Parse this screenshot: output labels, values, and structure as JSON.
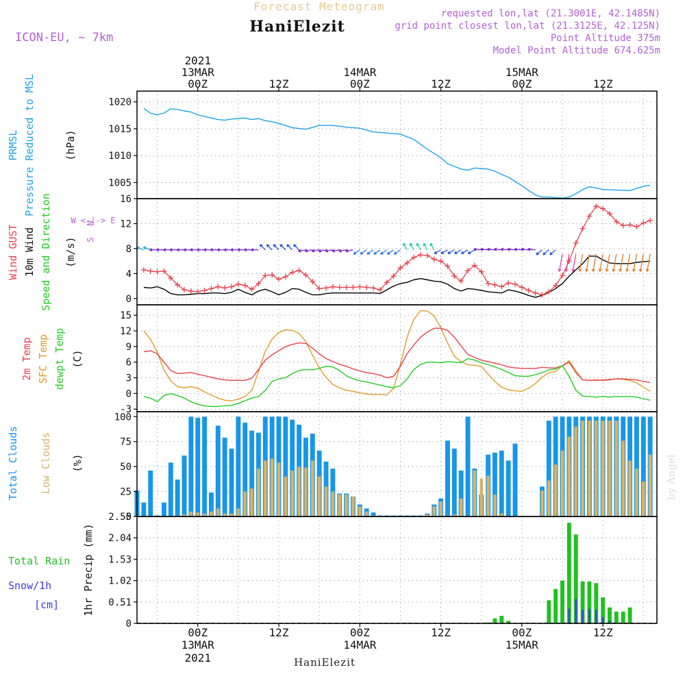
{
  "header": {
    "title": "Forecast Meteogram",
    "location": "HaniElezit",
    "model": "ICON-EU, ~ 7km",
    "requested": "requested lon,lat (21.3001E, 42.1485N)",
    "closest": "grid point closest lon,lat (21.3125E, 42.125N)",
    "altitude": "Point Altitude 375m",
    "model_altitude": "Model Point Altitude 674.625m",
    "watermark": "by Angel",
    "footer": "HaniElezit"
  },
  "time_axis": {
    "top_labels": [
      {
        "h": 0,
        "lines": [
          "2021",
          "13MAR",
          "00Z"
        ]
      },
      {
        "h": 12,
        "lines": [
          "",
          "",
          "12Z"
        ]
      },
      {
        "h": 24,
        "lines": [
          "",
          "14MAR",
          "00Z"
        ]
      },
      {
        "h": 36,
        "lines": [
          "",
          "",
          "12Z"
        ]
      },
      {
        "h": 48,
        "lines": [
          "",
          "15MAR",
          "00Z"
        ]
      },
      {
        "h": 60,
        "lines": [
          "",
          "",
          "12Z"
        ]
      }
    ],
    "bottom_labels": [
      {
        "h": 0,
        "lines": [
          "00Z",
          "13MAR",
          "2021"
        ]
      },
      {
        "h": 12,
        "lines": [
          "12Z",
          "",
          ""
        ]
      },
      {
        "h": 24,
        "lines": [
          "00Z",
          "14MAR",
          ""
        ]
      },
      {
        "h": 36,
        "lines": [
          "12Z",
          "",
          ""
        ]
      },
      {
        "h": 48,
        "lines": [
          "00Z",
          "15MAR",
          ""
        ]
      },
      {
        "h": 60,
        "lines": [
          "12Z",
          "",
          ""
        ]
      }
    ]
  },
  "panels": {
    "pressure": {
      "labels": [
        "PRMSL",
        "Pressure Reduced to MSL"
      ],
      "unit": "(hPa)",
      "yticks": [
        1005,
        1010,
        1015,
        1020
      ],
      "ylim": [
        1002,
        1022
      ]
    },
    "wind": {
      "labels": [
        "Wind GUST",
        "10m Wind",
        "Speed and Direction"
      ],
      "unit": "(m/s)",
      "compass": [
        "N",
        "W <-|-> E",
        "S"
      ],
      "yticks": [
        0,
        4,
        8,
        12,
        16
      ],
      "ylim": [
        -1,
        16
      ]
    },
    "temperature": {
      "labels": [
        "2m Temp",
        "SFC Temp",
        "dewpt Temp"
      ],
      "unit": "(C)",
      "yticks": [
        -3,
        0,
        3,
        6,
        9,
        12,
        15
      ],
      "ylim": [
        -3.5,
        17
      ]
    },
    "clouds": {
      "labels": [
        "Total Clouds",
        "Low Clouds"
      ],
      "unit": "(%)",
      "yticks": [
        0,
        25,
        50,
        75,
        100
      ],
      "ylim": [
        0,
        105
      ]
    },
    "precip": {
      "labels": [
        "Total Rain",
        "Snow/1h",
        "[cm]"
      ],
      "unit": "1hr Precip (mm)",
      "yticks": [
        0,
        0.51,
        1.02,
        1.53,
        2.04,
        2.55
      ],
      "ylim": [
        0,
        2.55
      ]
    }
  },
  "colors": {
    "pressure": "#1ca3e6",
    "gust": "#e8414b",
    "wind": "#000000",
    "t2m": "#e8414b",
    "tsfc": "#e09a2a",
    "dewpt": "#22cc22",
    "total_clouds": "#1896e8",
    "low_clouds": "#d6b36a",
    "rain": "#22c022",
    "snow": "#3a3ae8",
    "label_purple": "#b55fd6",
    "title_gold": "#e8c890"
  },
  "chart_data": {
    "type": "line",
    "x_unit": "hours from 2021-03-13 00Z",
    "x_range": [
      -9,
      68
    ],
    "pressure": {
      "name": "PRMSL",
      "x": [
        -8,
        -7,
        -6,
        -5,
        -4,
        -3,
        -2,
        -1,
        0,
        1,
        2,
        3,
        4,
        5,
        6,
        7,
        8,
        9,
        10,
        11,
        12,
        14,
        16,
        18,
        20,
        22,
        24,
        26,
        28,
        30,
        32,
        34,
        36,
        37,
        38,
        39,
        40,
        41,
        42,
        43,
        44,
        45,
        46,
        47,
        48,
        49,
        50,
        51,
        52,
        53,
        54,
        55,
        56,
        57,
        58,
        59,
        60,
        62,
        64,
        65,
        66,
        67
      ],
      "y": [
        1018.8,
        1017.9,
        1017.6,
        1017.9,
        1018.7,
        1018.6,
        1018.3,
        1018.1,
        1017.6,
        1017.3,
        1017.0,
        1016.7,
        1016.6,
        1016.8,
        1016.9,
        1017.0,
        1016.7,
        1016.9,
        1016.5,
        1016.3,
        1016.0,
        1015.2,
        1014.9,
        1015.6,
        1015.6,
        1015.3,
        1015.1,
        1014.4,
        1014.2,
        1014.0,
        1013.0,
        1011.2,
        1009.6,
        1008.5,
        1008.0,
        1007.5,
        1007.3,
        1007.7,
        1007.6,
        1007.5,
        1007.1,
        1006.5,
        1006.0,
        1005.2,
        1004.4,
        1003.5,
        1002.7,
        1002.3,
        1002.3,
        1002.2,
        1002.1,
        1002.3,
        1002.9,
        1003.7,
        1004.2,
        1004.0,
        1003.7,
        1003.6,
        1003.5,
        1003.9,
        1004.3,
        1004.5
      ]
    },
    "wind_gust": {
      "name": "Wind GUST",
      "x": [
        -8,
        -7,
        -6,
        -5,
        -4,
        -3,
        -2,
        -1,
        0,
        1,
        2,
        3,
        4,
        5,
        6,
        7,
        8,
        9,
        10,
        11,
        12,
        13,
        14,
        15,
        16,
        17,
        18,
        19,
        20,
        21,
        22,
        23,
        24,
        25,
        26,
        27,
        28,
        29,
        30,
        31,
        32,
        33,
        34,
        35,
        36,
        37,
        38,
        39,
        40,
        41,
        42,
        43,
        44,
        45,
        46,
        47,
        48,
        49,
        50,
        51,
        52,
        53,
        54,
        55,
        56,
        57,
        58,
        59,
        60,
        61,
        62,
        63,
        64,
        65,
        66,
        67
      ],
      "y": [
        4.6,
        4.4,
        4.3,
        4.4,
        3.3,
        2.2,
        1.4,
        1.2,
        1.1,
        1.3,
        1.6,
        1.9,
        1.7,
        1.9,
        2.3,
        2.1,
        1.5,
        2.4,
        3.7,
        3.8,
        3.1,
        3.5,
        4.2,
        4.5,
        3.8,
        2.7,
        1.6,
        1.7,
        1.9,
        1.8,
        1.8,
        1.8,
        1.9,
        1.8,
        1.7,
        1.4,
        2.6,
        3.6,
        4.9,
        5.7,
        6.6,
        7.0,
        6.9,
        6.3,
        6.0,
        5.2,
        3.6,
        2.8,
        4.5,
        5.3,
        4.3,
        2.4,
        2.2,
        1.9,
        2.5,
        2.3,
        1.8,
        1.3,
        0.9,
        0.6,
        1.1,
        2.1,
        3.7,
        6.0,
        8.9,
        11.2,
        13.2,
        14.8,
        14.4,
        13.6,
        12.3,
        11.7,
        11.8,
        11.5,
        12.1,
        12.5
      ]
    },
    "wind_speed": {
      "name": "10m Wind",
      "x": [
        -8,
        -7,
        -6,
        -5,
        -4,
        -3,
        -2,
        -1,
        0,
        1,
        2,
        3,
        4,
        5,
        6,
        7,
        8,
        9,
        10,
        11,
        12,
        13,
        14,
        15,
        16,
        17,
        18,
        19,
        20,
        21,
        22,
        23,
        24,
        25,
        26,
        27,
        28,
        29,
        30,
        31,
        32,
        33,
        34,
        35,
        36,
        37,
        38,
        39,
        40,
        41,
        42,
        43,
        44,
        45,
        46,
        47,
        48,
        49,
        50,
        51,
        52,
        53,
        54,
        55,
        56,
        57,
        58,
        59,
        60,
        61,
        62,
        63,
        64,
        65,
        66,
        67
      ],
      "y": [
        1.8,
        1.7,
        1.9,
        1.5,
        0.8,
        0.6,
        0.6,
        0.7,
        0.8,
        0.8,
        0.9,
        0.9,
        0.8,
        1.0,
        1.5,
        1.0,
        0.6,
        1.2,
        1.5,
        1.1,
        0.6,
        1.0,
        1.6,
        1.5,
        1.0,
        0.6,
        0.6,
        0.8,
        0.9,
        0.9,
        0.9,
        0.9,
        0.9,
        0.9,
        0.9,
        0.8,
        1.4,
        2.0,
        2.4,
        2.6,
        3.0,
        3.2,
        3.0,
        2.8,
        2.7,
        2.3,
        1.6,
        1.2,
        1.6,
        1.5,
        1.3,
        1.1,
        1.0,
        0.9,
        1.4,
        1.2,
        0.9,
        0.5,
        0.2,
        0.5,
        1.0,
        1.6,
        2.4,
        3.6,
        4.6,
        5.6,
        6.8,
        6.8,
        6.2,
        5.7,
        5.6,
        5.6,
        5.6,
        5.8,
        5.9,
        6.0
      ]
    },
    "t2m": {
      "name": "2m Temp",
      "x": [
        -8,
        -7,
        -6,
        -5,
        -4,
        -3,
        -2,
        -1,
        0,
        1,
        2,
        3,
        4,
        5,
        6,
        7,
        8,
        9,
        10,
        11,
        12,
        13,
        14,
        15,
        16,
        17,
        18,
        19,
        20,
        21,
        22,
        23,
        24,
        25,
        26,
        27,
        28,
        29,
        30,
        31,
        32,
        33,
        34,
        35,
        36,
        37,
        38,
        39,
        40,
        41,
        42,
        43,
        44,
        45,
        46,
        47,
        48,
        49,
        50,
        51,
        52,
        53,
        54,
        55,
        56,
        57,
        58,
        59,
        60,
        61,
        62,
        63,
        64,
        65,
        66,
        67
      ],
      "y": [
        8.0,
        8.2,
        7.6,
        6.0,
        4.4,
        3.8,
        3.9,
        4.0,
        3.7,
        3.4,
        3.1,
        2.8,
        2.6,
        2.5,
        2.5,
        2.5,
        2.9,
        4.6,
        6.4,
        7.4,
        8.2,
        9.0,
        9.4,
        9.7,
        9.6,
        8.7,
        7.6,
        6.7,
        6.1,
        5.6,
        5.2,
        4.7,
        4.3,
        4.0,
        3.8,
        3.5,
        3.0,
        3.3,
        5.2,
        7.6,
        9.3,
        10.8,
        11.8,
        12.5,
        12.5,
        12.1,
        10.8,
        9.1,
        7.5,
        6.9,
        6.4,
        6.1,
        5.8,
        5.5,
        5.1,
        4.9,
        4.8,
        4.8,
        4.8,
        5.0,
        4.9,
        4.9,
        5.3,
        6.0,
        4.0,
        2.6,
        2.5,
        2.6,
        2.5,
        2.6,
        2.8,
        2.8,
        2.7,
        2.6,
        2.3,
        2.1
      ]
    },
    "tsfc": {
      "name": "SFC Temp",
      "x": [
        -8,
        -7,
        -6,
        -5,
        -4,
        -3,
        -2,
        -1,
        0,
        1,
        2,
        3,
        4,
        5,
        6,
        7,
        8,
        9,
        10,
        11,
        12,
        13,
        14,
        15,
        16,
        17,
        18,
        19,
        20,
        21,
        22,
        23,
        24,
        25,
        26,
        27,
        28,
        29,
        30,
        31,
        32,
        33,
        34,
        35,
        36,
        37,
        38,
        39,
        40,
        41,
        42,
        43,
        44,
        45,
        46,
        47,
        48,
        49,
        50,
        51,
        52,
        53,
        54,
        55,
        56,
        57,
        58,
        59,
        60,
        61,
        62,
        63,
        64,
        65,
        66,
        67
      ],
      "y": [
        12.0,
        10.4,
        7.9,
        4.5,
        2.4,
        1.3,
        1.1,
        1.3,
        1.0,
        0.3,
        -0.3,
        -0.9,
        -1.3,
        -1.4,
        -1.1,
        -0.6,
        0.6,
        4.2,
        8.1,
        10.4,
        11.7,
        12.2,
        12.1,
        11.5,
        10.0,
        7.3,
        4.9,
        3.1,
        1.7,
        1.1,
        0.6,
        0.4,
        0.1,
        -0.1,
        -0.2,
        -0.2,
        -0.3,
        1.0,
        5.5,
        10.8,
        14.2,
        15.9,
        15.8,
        14.9,
        12.6,
        9.7,
        7.1,
        6.1,
        5.5,
        5.4,
        5.2,
        3.7,
        2.3,
        1.2,
        0.7,
        0.5,
        0.4,
        1.0,
        1.9,
        3.1,
        4.0,
        4.2,
        5.3,
        6.3,
        4.3,
        2.6,
        2.5,
        2.5,
        2.6,
        2.7,
        2.8,
        2.7,
        2.5,
        2.0,
        1.2,
        0.4
      ]
    },
    "dewpt": {
      "name": "dewpt Temp",
      "x": [
        -8,
        -7,
        -6,
        -5,
        -4,
        -3,
        -2,
        -1,
        0,
        1,
        2,
        3,
        4,
        5,
        6,
        7,
        8,
        9,
        10,
        11,
        12,
        13,
        14,
        15,
        16,
        17,
        18,
        19,
        20,
        21,
        22,
        23,
        24,
        25,
        26,
        27,
        28,
        29,
        30,
        31,
        32,
        33,
        34,
        35,
        36,
        37,
        38,
        39,
        40,
        41,
        42,
        43,
        44,
        45,
        46,
        47,
        48,
        49,
        50,
        51,
        52,
        53,
        54,
        55,
        56,
        57,
        58,
        59,
        60,
        61,
        62,
        63,
        64,
        65,
        66,
        67
      ],
      "y": [
        -0.6,
        -0.9,
        -1.6,
        -0.4,
        0.0,
        -0.4,
        -0.9,
        -1.6,
        -2.1,
        -2.4,
        -2.5,
        -2.5,
        -2.4,
        -2.3,
        -1.9,
        -1.4,
        -0.9,
        -0.6,
        0.6,
        2.3,
        2.8,
        3.0,
        3.8,
        4.4,
        4.6,
        4.5,
        4.8,
        5.2,
        5.1,
        4.4,
        3.4,
        2.8,
        2.4,
        2.2,
        1.9,
        1.6,
        1.3,
        1.1,
        1.5,
        2.8,
        4.6,
        5.6,
        6.0,
        6.0,
        5.9,
        6.1,
        6.0,
        5.9,
        6.7,
        6.4,
        5.9,
        5.5,
        5.1,
        4.6,
        4.0,
        3.4,
        3.3,
        3.3,
        3.6,
        4.0,
        4.5,
        4.7,
        5.3,
        3.3,
        0.6,
        -0.5,
        -0.6,
        -0.7,
        -0.6,
        -0.7,
        -0.6,
        -0.6,
        -0.6,
        -0.7,
        -1.0,
        -1.3
      ]
    },
    "clouds": {
      "x": [
        -9,
        -8,
        -7,
        -6,
        -5,
        -4,
        -3,
        -2,
        -1,
        0,
        1,
        2,
        3,
        4,
        5,
        6,
        7,
        8,
        9,
        10,
        11,
        12,
        13,
        14,
        15,
        16,
        17,
        18,
        19,
        20,
        21,
        22,
        23,
        24,
        25,
        26,
        27,
        28,
        29,
        30,
        31,
        32,
        33,
        34,
        35,
        36,
        37,
        38,
        39,
        40,
        41,
        42,
        43,
        44,
        45,
        46,
        47,
        48,
        49,
        50,
        51,
        52,
        53,
        54,
        55,
        56,
        57,
        58,
        59,
        60,
        61,
        62,
        63,
        64,
        65,
        66,
        67
      ],
      "total": [
        26,
        14,
        46,
        1,
        14,
        54,
        37,
        61,
        100,
        99,
        100,
        24,
        91,
        79,
        68,
        100,
        94,
        86,
        84,
        100,
        100,
        100,
        100,
        97,
        92,
        79,
        83,
        66,
        55,
        48,
        23,
        23,
        20,
        12,
        8,
        4,
        1,
        1,
        1,
        1,
        1,
        1,
        1,
        3,
        12,
        18,
        76,
        68,
        46,
        100,
        48,
        22,
        62,
        64,
        66,
        56,
        73,
        0,
        0,
        0,
        30,
        96,
        100,
        100,
        100,
        100,
        100,
        100,
        100,
        100,
        100,
        100,
        100,
        100,
        100,
        100,
        100
      ],
      "low": [
        0,
        0,
        0,
        0,
        0,
        0,
        0,
        2,
        5,
        4,
        3,
        5,
        8,
        3,
        3,
        8,
        25,
        28,
        48,
        56,
        58,
        54,
        40,
        46,
        50,
        49,
        56,
        40,
        30,
        25,
        22,
        22,
        20,
        10,
        5,
        1,
        0,
        0,
        0,
        0,
        0,
        0,
        0,
        2,
        10,
        15,
        0,
        2,
        18,
        0,
        46,
        38,
        41,
        22,
        3,
        0,
        0,
        0,
        0,
        0,
        26,
        36,
        52,
        66,
        80,
        90,
        96,
        96,
        96,
        96,
        96,
        96,
        76,
        56,
        48,
        35,
        62
      ]
    },
    "precip": {
      "x": [
        43,
        44,
        45,
        46,
        47,
        48,
        49,
        50,
        51,
        52,
        53,
        54,
        55,
        56,
        57,
        58,
        59,
        60,
        61,
        62,
        63,
        64,
        65,
        66,
        67
      ],
      "rain": [
        0.02,
        0.12,
        0.18,
        0.06,
        0.0,
        0.0,
        0.0,
        0.0,
        0.0,
        0.55,
        0.82,
        1.02,
        2.4,
        2.12,
        1.0,
        1.0,
        0.96,
        0.62,
        0.38,
        0.28,
        0.28,
        0.38,
        0.0,
        0.0,
        0.0
      ],
      "snow": [
        0.0,
        0.0,
        0.0,
        0.0,
        0.0,
        0.0,
        0.0,
        0.0,
        0.0,
        0.0,
        0.0,
        0.0,
        0.35,
        0.58,
        0.32,
        0.35,
        0.32,
        0.15,
        0.06,
        0.0,
        0.0,
        0.0,
        0.0,
        0.0,
        0.0
      ]
    }
  }
}
